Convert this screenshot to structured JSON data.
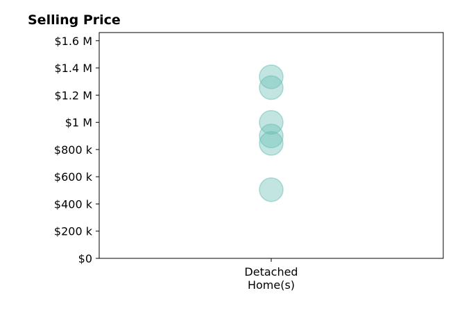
{
  "chart_data": {
    "type": "scatter",
    "title": "Selling Price",
    "xlabel": "",
    "ylabel": "",
    "categories": [
      "Detached Home(s)"
    ],
    "category_label_lines": [
      [
        "Detached",
        "Home(s)"
      ]
    ],
    "ylim": [
      0,
      1660000
    ],
    "yticks": [
      {
        "value": 0,
        "label": "$0"
      },
      {
        "value": 200000,
        "label": "$200 k"
      },
      {
        "value": 400000,
        "label": "$400 k"
      },
      {
        "value": 600000,
        "label": "$600 k"
      },
      {
        "value": 800000,
        "label": "$800 k"
      },
      {
        "value": 1000000,
        "label": "$1 M"
      },
      {
        "value": 1200000,
        "label": "$1.2 M"
      },
      {
        "value": 1400000,
        "label": "$1.4 M"
      },
      {
        "value": 1600000,
        "label": "$1.6 M"
      }
    ],
    "series": [
      {
        "category": "Detached Home(s)",
        "values": [
          1335000,
          1255000,
          1000000,
          900000,
          845000,
          505000
        ],
        "color": "#66bdb3",
        "opacity": 0.4
      }
    ],
    "grid": false,
    "legend": "none"
  }
}
